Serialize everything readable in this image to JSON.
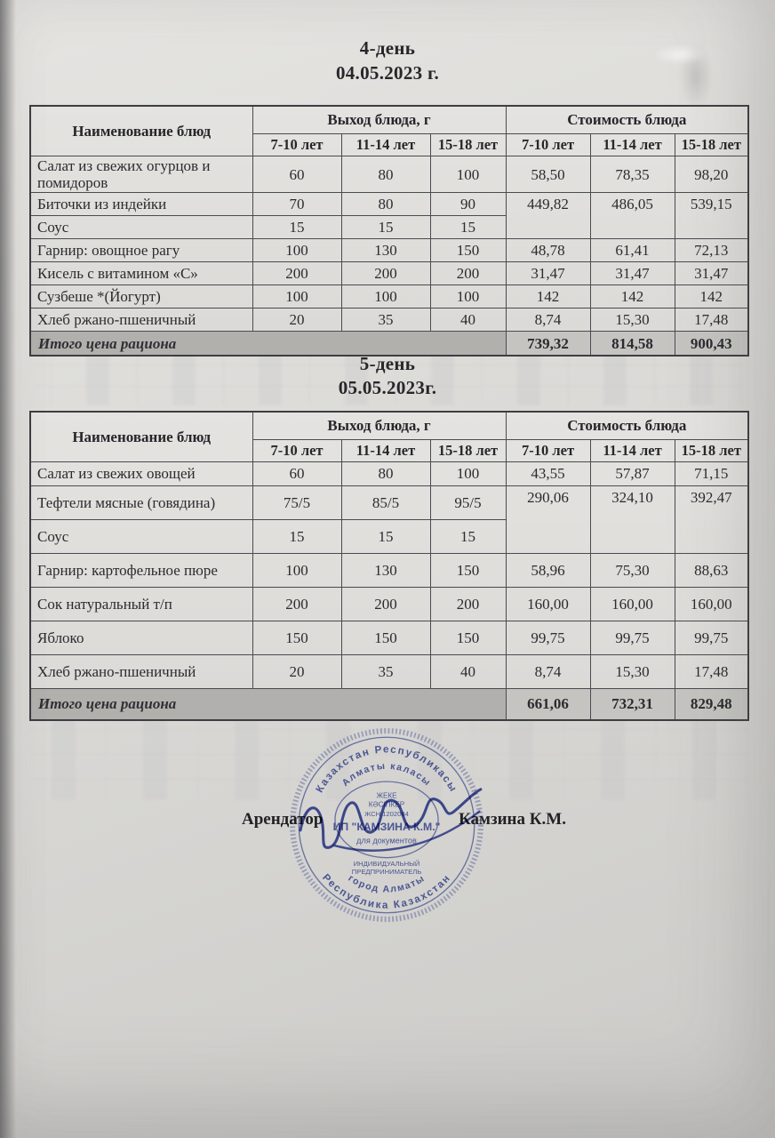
{
  "document": {
    "sections": [
      {
        "day_title": "4-день",
        "date": "04.05.2023 г.",
        "table": {
          "header": {
            "name": "Наименование блюд",
            "weight_group": "Выход блюда, г",
            "cost_group": "Стоимость блюда",
            "age_groups": [
              "7-10 лет",
              "11-14 лет",
              "15-18 лет"
            ]
          },
          "rows": [
            {
              "name": "Салат из свежих огурцов и помидоров",
              "weights": [
                "60",
                "80",
                "100"
              ],
              "costs": [
                "58,50",
                "78,35",
                "98,20"
              ]
            },
            {
              "name": "Биточки из индейки",
              "weights": [
                "70",
                "80",
                "90"
              ],
              "costs": [
                "449,82",
                "486,05",
                "539,15"
              ],
              "cost_rowspan": 2
            },
            {
              "name": "Соус",
              "weights": [
                "15",
                "15",
                "15"
              ],
              "costs": null
            },
            {
              "name": "Гарнир: овощное рагу",
              "weights": [
                "100",
                "130",
                "150"
              ],
              "costs": [
                "48,78",
                "61,41",
                "72,13"
              ]
            },
            {
              "name": "Кисель  с витамином «С»",
              "weights": [
                "200",
                "200",
                "200"
              ],
              "costs": [
                "31,47",
                "31,47",
                "31,47"
              ]
            },
            {
              "name": "Сузбеше *(Йогурт)",
              "weights": [
                "100",
                "100",
                "100"
              ],
              "costs": [
                "142",
                "142",
                "142"
              ]
            },
            {
              "name": "Хлеб ржано-пшеничный",
              "weights": [
                "20",
                "35",
                "40"
              ],
              "costs": [
                "8,74",
                "15,30",
                "17,48"
              ]
            }
          ],
          "total": {
            "label": "Итого цена рациона",
            "values": [
              "739,32",
              "814,58",
              "900,43"
            ]
          }
        }
      },
      {
        "day_title": "5-день",
        "date": "05.05.2023г.",
        "table": {
          "header": {
            "name": "Наименование блюд",
            "weight_group": "Выход блюда, г",
            "cost_group": "Стоимость блюда",
            "age_groups": [
              "7-10 лет",
              "11-14 лет",
              "15-18 лет"
            ]
          },
          "rows": [
            {
              "name": "Салат из свежих овощей",
              "weights": [
                "60",
                "80",
                "100"
              ],
              "costs": [
                "43,55",
                "57,87",
                "71,15"
              ]
            },
            {
              "name": "Тефтели  мясные (говядина)",
              "weights": [
                "75/5",
                "85/5",
                "95/5"
              ],
              "costs": [
                "290,06",
                "324,10",
                "392,47"
              ],
              "cost_rowspan": 2
            },
            {
              "name": "Соус",
              "weights": [
                "15",
                "15",
                "15"
              ],
              "costs": null
            },
            {
              "name": "Гарнир: картофельное пюре",
              "weights": [
                "100",
                "130",
                "150"
              ],
              "costs": [
                "58,96",
                "75,30",
                "88,63"
              ]
            },
            {
              "name": "Сок натуральный т/п",
              "weights": [
                "200",
                "200",
                "200"
              ],
              "costs": [
                "160,00",
                "160,00",
                "160,00"
              ]
            },
            {
              "name": "Яблоко",
              "weights": [
                "150",
                "150",
                "150"
              ],
              "costs": [
                "99,75",
                "99,75",
                "99,75"
              ]
            },
            {
              "name": "Хлеб ржано-пшеничный",
              "weights": [
                "20",
                "35",
                "40"
              ],
              "costs": [
                "8,74",
                "15,30",
                "17,48"
              ]
            }
          ],
          "total": {
            "label": "Итого цена рациона",
            "values": [
              "661,06",
              "732,31",
              "829,48"
            ]
          }
        }
      }
    ],
    "footer": {
      "lessor_label": "Арендатор",
      "signer_name": "Камзина К.М."
    },
    "stamp": {
      "color": "#3d4da6",
      "outer_top": "Казахстан Республикасы",
      "outer_bottom": "Республика Казахстан",
      "inner_top": "Алматы каласы",
      "inner_bottom": "город Алматы",
      "center_line1": "ЖЕКЕ",
      "center_line2": "КӘСІПКЕР",
      "center_line3": "ЖСН 1202084",
      "center_line4": "ИП \"КАМЗИНА К.М.\"",
      "center_line5": "для документов",
      "center_line6": "ИНДИВИДУАЛЬНЫЙ",
      "center_line7": "ПРЕДПРИНИМАТЕЛЬ"
    }
  }
}
